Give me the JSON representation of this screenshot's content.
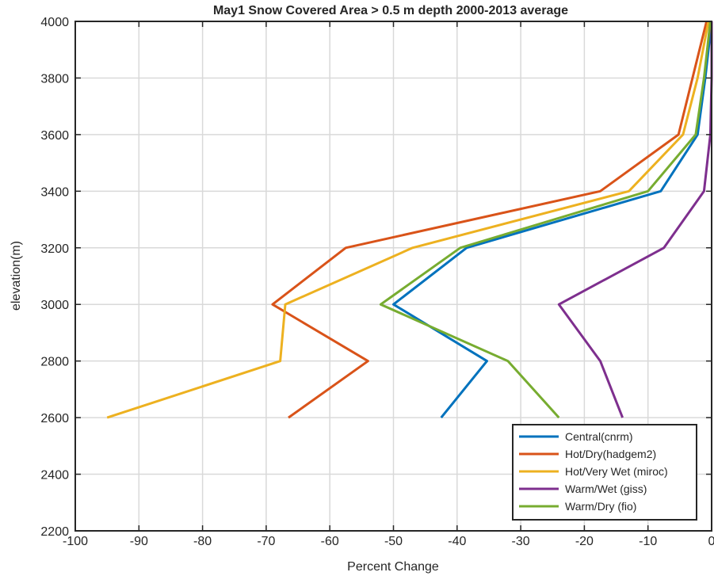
{
  "chart_data": {
    "type": "line",
    "title": "May1  Snow Covered Area > 0.5 m depth    2000-2013 average",
    "xlabel": "Percent Change",
    "ylabel": "elevation(m)",
    "xlim": [
      -100,
      0
    ],
    "ylim": [
      2200,
      4000
    ],
    "xticks": [
      "-100",
      "-90",
      "-80",
      "-70",
      "-60",
      "-50",
      "-40",
      "-30",
      "-20",
      "-10",
      "0"
    ],
    "yticks": [
      "2200",
      "2400",
      "2600",
      "2800",
      "3000",
      "3200",
      "3400",
      "3600",
      "3800",
      "4000"
    ],
    "grid": true,
    "legend_position": "bottom-right",
    "y": [
      2600,
      2800,
      3000,
      3200,
      3400,
      3600,
      3800,
      4000
    ],
    "series": [
      {
        "name": "Central(cnrm)",
        "color": "#0072BD",
        "x": [
          -42.5,
          -35.3,
          -50.0,
          -38.5,
          -8.0,
          -2.2,
          -1.0,
          0.0
        ]
      },
      {
        "name": "Hot/Dry(hadgem2)",
        "color": "#D95319",
        "x": [
          -66.5,
          -54.0,
          -69.0,
          -57.5,
          -17.5,
          -5.2,
          -3.0,
          -0.8
        ]
      },
      {
        "name": "Hot/Very Wet (miroc)",
        "color": "#EDB120",
        "x": [
          -95.0,
          -67.8,
          -67.0,
          -47.0,
          -13.0,
          -4.5,
          -2.2,
          -0.5
        ]
      },
      {
        "name": "Warm/Wet (giss)",
        "color": "#7E2F8E",
        "x": [
          -14.0,
          -17.5,
          -24.0,
          -7.5,
          -1.2,
          -0.2,
          0.0,
          0.0
        ]
      },
      {
        "name": "Warm/Dry (fio)",
        "color": "#77AC30",
        "x": [
          -24.0,
          -32.0,
          -52.0,
          -39.5,
          -10.0,
          -2.5,
          -1.2,
          -0.2
        ]
      }
    ]
  }
}
